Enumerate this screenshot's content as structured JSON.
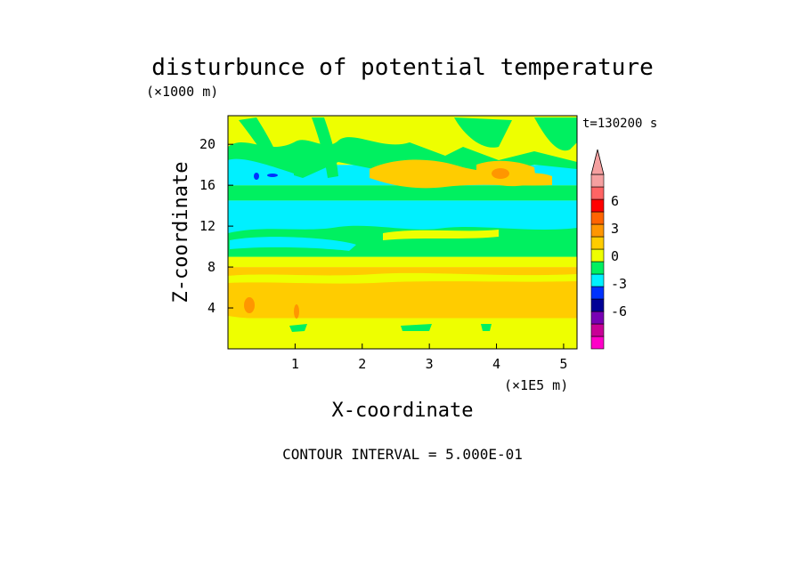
{
  "chart_data": {
    "type": "heatmap",
    "title": "disturbunce of potential temperature",
    "y_unit": "(×1000 m)",
    "time_label": "t=130200 s",
    "xlabel": "X-coordinate",
    "x_unit": "(×1E5 m)",
    "ylabel": "Z-coordinate",
    "footer": "CONTOUR INTERVAL = 5.000E-01",
    "xlim": [
      0,
      5.2
    ],
    "ylim": [
      0,
      22.8
    ],
    "x_ticks": [
      "1",
      "2",
      "3",
      "4",
      "5"
    ],
    "y_ticks": [
      "4",
      "8",
      "12",
      "16",
      "20"
    ],
    "colorbar": {
      "tick_labels": [
        "6",
        "3",
        "0",
        "-3",
        "-6"
      ],
      "colors": [
        "#ff00c8",
        "#c80096",
        "#7800b4",
        "#000096",
        "#0032ff",
        "#00f0ff",
        "#00f060",
        "#eeff00",
        "#ffcc00",
        "#ff9600",
        "#ff6400",
        "#ff0000",
        "#ff6464",
        "#f5a0a0"
      ]
    },
    "field_bands": [
      {
        "z": [
          0,
          3
        ],
        "level": "0 to 0.5",
        "color": "#eeff00"
      },
      {
        "z": [
          3,
          8
        ],
        "level": "0.5 to 1",
        "color": "#ffcc00"
      },
      {
        "z": [
          8,
          9
        ],
        "level": "0 to 0.5",
        "color": "#eeff00"
      },
      {
        "z": [
          9,
          11
        ],
        "level": "-0.5 to 0",
        "color": "#00f060"
      },
      {
        "z": [
          11,
          14.5
        ],
        "level": "-1 to -0.5",
        "color": "#00f0ff"
      },
      {
        "z": [
          14.5,
          16
        ],
        "level": "-0.5 to 0",
        "color": "#00f060"
      },
      {
        "z": [
          16,
          18
        ],
        "level": "-1 to -0.5",
        "color": "#00f0ff"
      },
      {
        "z": [
          18,
          22.8
        ],
        "level": "0 to 0.5",
        "color": "#eeff00"
      }
    ]
  }
}
